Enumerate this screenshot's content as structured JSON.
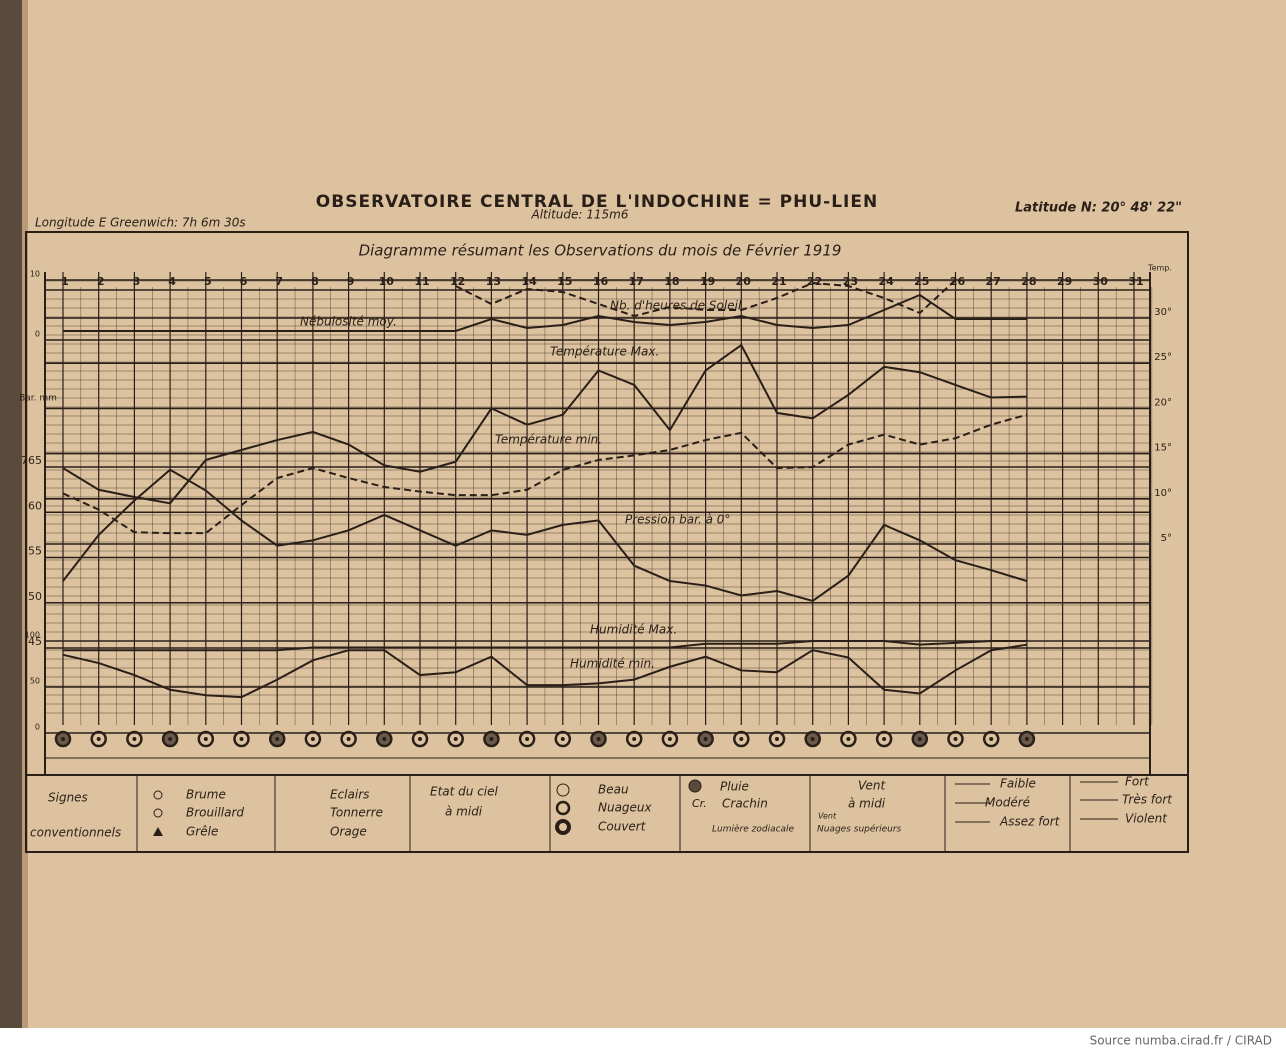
{
  "header": {
    "title": "OBSERVATOIRE CENTRAL DE L'INDOCHINE = PHU-LIEN",
    "longitude": "Longitude E Greenwich: 7h 6m 30s",
    "altitude": "Altitude: 115m6",
    "latitude": "Latitude N: 20° 48' 22\""
  },
  "chart_data": {
    "type": "line",
    "title": "Diagramme résumant les Observations du mois de Février 1919",
    "categories": [
      "1",
      "2",
      "3",
      "4",
      "5",
      "6",
      "7",
      "8",
      "9",
      "10",
      "11",
      "12",
      "13",
      "14",
      "15",
      "16",
      "17",
      "18",
      "19",
      "20",
      "21",
      "22",
      "23",
      "24",
      "25",
      "26",
      "27",
      "28",
      "29",
      "30",
      "31"
    ],
    "y_label": "Bar. mm",
    "y2_label": "Temp.",
    "ylim": [
      745,
      765
    ],
    "yticks": [
      {
        "value": 745,
        "label": "45"
      },
      {
        "value": 750,
        "label": "50"
      },
      {
        "value": 755,
        "label": "55"
      },
      {
        "value": 760,
        "label": "60"
      },
      765
    ],
    "y2lim": [
      5,
      30
    ],
    "y2ticks": [
      {
        "value": 5,
        "label": "5°"
      },
      {
        "value": 10,
        "label": "10°"
      },
      {
        "value": 15,
        "label": "15°"
      },
      {
        "value": 20,
        "label": "20°"
      },
      {
        "value": 25,
        "label": "25°"
      },
      {
        "value": 30,
        "label": "30°"
      }
    ],
    "y3lim": [
      0,
      100
    ],
    "y3ticks": [
      0,
      50,
      100
    ],
    "y4lim": [
      0,
      10
    ],
    "y4ticks": [
      0,
      10
    ],
    "grid": true,
    "series": [
      {
        "name": "Nb. d'heures de Soleil",
        "axis": "y4",
        "style": "dashed",
        "color": "#2a1f18",
        "values": [
          null,
          null,
          null,
          null,
          null,
          null,
          null,
          null,
          null,
          null,
          null,
          9,
          6,
          8.5,
          8,
          6,
          4,
          5.5,
          5,
          5,
          7,
          9.5,
          9,
          7,
          4.5,
          10,
          null,
          null,
          null,
          null,
          null
        ]
      },
      {
        "name": "Nébulosité moy.",
        "axis": "y4",
        "style": "solid",
        "color": "#2a1f18",
        "values": [
          1.5,
          1.5,
          1.5,
          1.5,
          1.5,
          1.5,
          1.5,
          1.5,
          1.5,
          1.5,
          1.5,
          1.5,
          3.5,
          2,
          2.5,
          4,
          3,
          2.5,
          3,
          4,
          2.5,
          2,
          2.5,
          5,
          7.5,
          3.5,
          3.5,
          3.5,
          null,
          null,
          null
        ]
      },
      {
        "name": "Température Max.",
        "axis": "y2",
        "style": "solid",
        "color": "#2a1f18",
        "values": [
          13.4,
          11.0,
          10.2,
          9.5,
          14.3,
          15.4,
          16.5,
          17.4,
          16.0,
          13.7,
          13.0,
          14.1,
          20.0,
          18.2,
          19.3,
          24.2,
          22.6,
          17.6,
          24.2,
          27.0,
          19.5,
          18.9,
          21.5,
          24.6,
          24.0,
          22.6,
          21.2,
          21.3,
          null,
          null,
          null
        ]
      },
      {
        "name": "Température min.",
        "axis": "y2",
        "style": "dashed",
        "color": "#2a1f18",
        "values": [
          10.6,
          8.8,
          6.3,
          6.2,
          6.2,
          9.3,
          12.3,
          13.4,
          12.3,
          11.3,
          10.8,
          10.4,
          10.4,
          11.0,
          13.2,
          14.3,
          14.8,
          15.4,
          16.5,
          17.3,
          13.4,
          13.5,
          16.0,
          17.1,
          16.0,
          16.7,
          18.2,
          19.3,
          null,
          null,
          null
        ]
      },
      {
        "name": "Pression bar. à 0°",
        "axis": "y",
        "style": "solid",
        "color": "#2a1f18",
        "values": [
          752.4,
          757.5,
          761.3,
          764.7,
          762.4,
          759.1,
          756.3,
          756.9,
          758.0,
          759.7,
          758.0,
          756.3,
          758.0,
          757.5,
          758.6,
          759.1,
          754.1,
          752.4,
          751.9,
          750.8,
          751.3,
          750.2,
          753.0,
          758.6,
          756.9,
          754.7,
          753.6,
          752.4,
          null,
          null,
          null
        ]
      },
      {
        "name": "Humidité Max.",
        "axis": "y3",
        "style": "solid",
        "color": "#2a1f18",
        "values": [
          90,
          90,
          90,
          90,
          90,
          90,
          90,
          93,
          93,
          93,
          93,
          93,
          93,
          93,
          93,
          93,
          93,
          93,
          97,
          97,
          97,
          100,
          100,
          100,
          96,
          98,
          100,
          100,
          null,
          null,
          null
        ]
      },
      {
        "name": "Humidité min.",
        "axis": "y3",
        "style": "solid",
        "color": "#2a1f18",
        "values": [
          85,
          76,
          63,
          47,
          41,
          39,
          58,
          79,
          90,
          90,
          63,
          66,
          83,
          52,
          52,
          54,
          58,
          72,
          83,
          68,
          66,
          90,
          82,
          47,
          43,
          68,
          90,
          96,
          null,
          null,
          null
        ]
      }
    ]
  },
  "legend_table": {
    "signs": [
      "Signes",
      "conventionnels"
    ],
    "brume": "Brume",
    "brouillard": "Brouillard",
    "grele": "Grêle",
    "eclairs": "Eclairs",
    "tonnerre": "Tonnerre",
    "orage": "Orage",
    "sky": [
      "Etat du ciel",
      "à midi"
    ],
    "beau": "Beau",
    "nuageux": "Nuageux",
    "couvert": "Couvert",
    "pluie": "Pluie",
    "cr": "Cr.",
    "crachin": "Crachin",
    "zodiac": "Lumière zodiacale",
    "wind": [
      "Vent",
      "à midi"
    ],
    "wind_small": "Vent",
    "upper": "Nuages supérieurs",
    "faible": "Faible",
    "modere": "Modéré",
    "assez_fort": "Assez fort",
    "fort": "Fort",
    "tres_fort": "Très fort",
    "violent": "Violent"
  },
  "source": "Source numba.cirad.fr / CIRAD"
}
